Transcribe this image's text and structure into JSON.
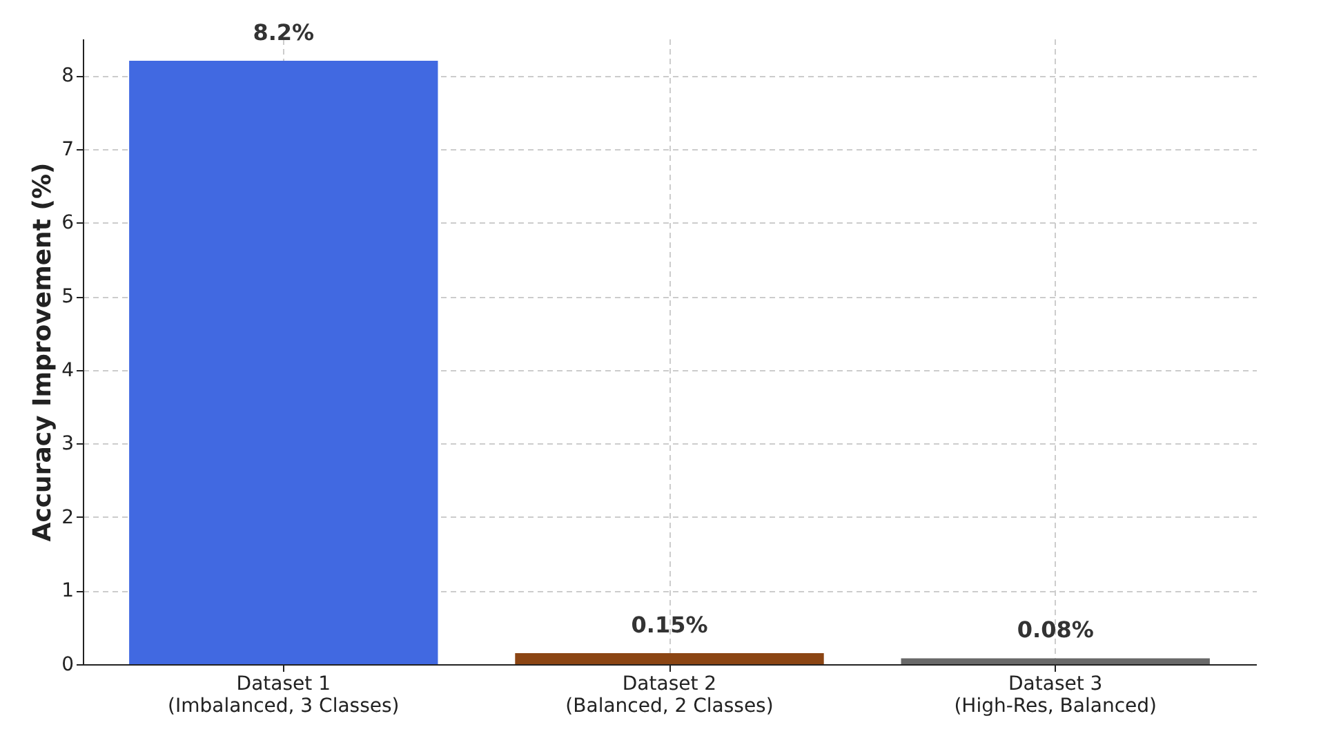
{
  "chart_data": {
    "type": "bar",
    "ylabel": "Accuracy Improvement (%)",
    "categories": [
      "Dataset 1\n(Imbalanced, 3 Classes)",
      "Dataset 2\n(Balanced, 2 Classes)",
      "Dataset 3\n(High-Res, Balanced)"
    ],
    "values": [
      8.2,
      0.15,
      0.08
    ],
    "colors": [
      "#4169e1",
      "#8b4513",
      "#696969"
    ],
    "value_labels": [
      "8.2%",
      "0.15%",
      "0.08%"
    ],
    "ylim": [
      0,
      8.5
    ],
    "yticks": [
      0,
      1,
      2,
      3,
      4,
      5,
      6,
      7,
      8
    ],
    "grid": true
  }
}
